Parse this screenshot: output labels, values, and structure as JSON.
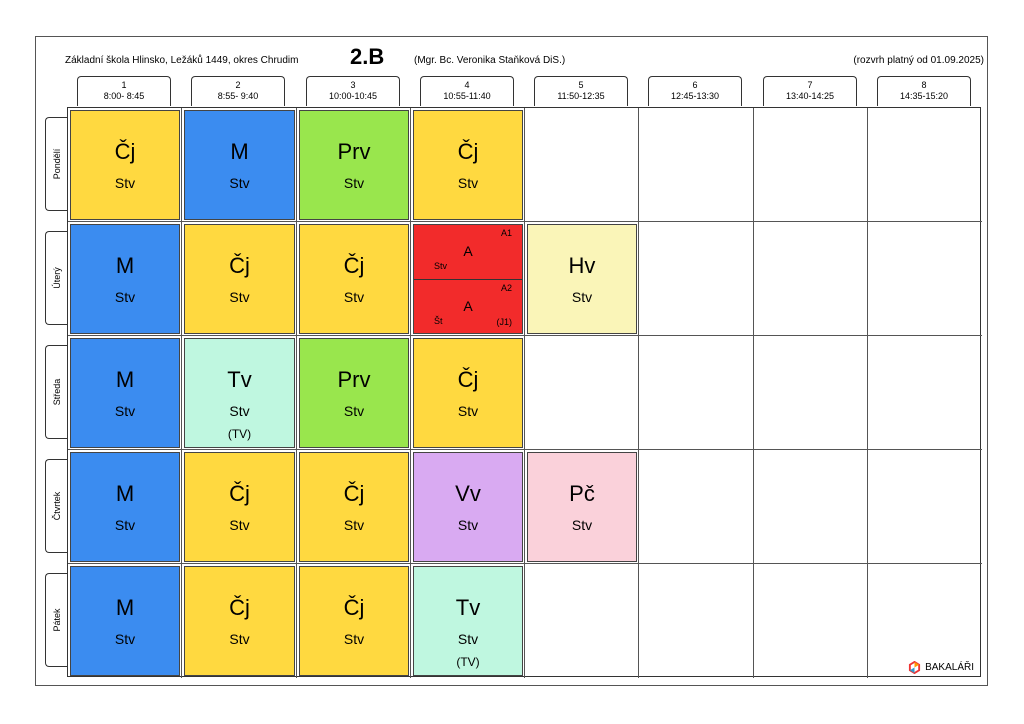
{
  "header": {
    "school": "Základní škola Hlinsko, Ležáků 1449, okres Chrudim",
    "class_name": "2.B",
    "teacher": "(Mgr. Bc. Veronika Staňková DiS.)",
    "valid_from": "(rozvrh platný od 01.09.2025)"
  },
  "periods": [
    {
      "num": "1",
      "time": "8:00- 8:45"
    },
    {
      "num": "2",
      "time": "8:55- 9:40"
    },
    {
      "num": "3",
      "time": "10:00-10:45"
    },
    {
      "num": "4",
      "time": "10:55-11:40"
    },
    {
      "num": "5",
      "time": "11:50-12:35"
    },
    {
      "num": "6",
      "time": "12:45-13:30"
    },
    {
      "num": "7",
      "time": "13:40-14:25"
    },
    {
      "num": "8",
      "time": "14:35-15:20"
    }
  ],
  "days": [
    "Pondělí",
    "Úterý",
    "Středa",
    "Čtvrtek",
    "Pátek"
  ],
  "colors": {
    "cj": "#FFD940",
    "m": "#3B8CF0",
    "prv": "#99E64D",
    "a": "#F22B2B",
    "hv": "#FAF5B8",
    "tv": "#BFF7E0",
    "vv": "#D9AAF2",
    "pc": "#FAD1DA"
  },
  "lessons": [
    {
      "day": 0,
      "period": 0,
      "subject": "Čj",
      "teacher": "Stv",
      "room": "",
      "color": "#FFD940"
    },
    {
      "day": 0,
      "period": 1,
      "subject": "M",
      "teacher": "Stv",
      "room": "",
      "color": "#3B8CF0"
    },
    {
      "day": 0,
      "period": 2,
      "subject": "Prv",
      "teacher": "Stv",
      "room": "",
      "color": "#99E64D"
    },
    {
      "day": 0,
      "period": 3,
      "subject": "Čj",
      "teacher": "Stv",
      "room": "",
      "color": "#FFD940"
    },
    {
      "day": 1,
      "period": 0,
      "subject": "M",
      "teacher": "Stv",
      "room": "",
      "color": "#3B8CF0"
    },
    {
      "day": 1,
      "period": 1,
      "subject": "Čj",
      "teacher": "Stv",
      "room": "",
      "color": "#FFD940"
    },
    {
      "day": 1,
      "period": 2,
      "subject": "Čj",
      "teacher": "Stv",
      "room": "",
      "color": "#FFD940"
    },
    {
      "day": 1,
      "period": 4,
      "subject": "Hv",
      "teacher": "Stv",
      "room": "",
      "color": "#FAF5B8"
    },
    {
      "day": 2,
      "period": 0,
      "subject": "M",
      "teacher": "Stv",
      "room": "",
      "color": "#3B8CF0"
    },
    {
      "day": 2,
      "period": 1,
      "subject": "Tv",
      "teacher": "Stv",
      "room": "(TV)",
      "color": "#BFF7E0"
    },
    {
      "day": 2,
      "period": 2,
      "subject": "Prv",
      "teacher": "Stv",
      "room": "",
      "color": "#99E64D"
    },
    {
      "day": 2,
      "period": 3,
      "subject": "Čj",
      "teacher": "Stv",
      "room": "",
      "color": "#FFD940"
    },
    {
      "day": 3,
      "period": 0,
      "subject": "M",
      "teacher": "Stv",
      "room": "",
      "color": "#3B8CF0"
    },
    {
      "day": 3,
      "period": 1,
      "subject": "Čj",
      "teacher": "Stv",
      "room": "",
      "color": "#FFD940"
    },
    {
      "day": 3,
      "period": 2,
      "subject": "Čj",
      "teacher": "Stv",
      "room": "",
      "color": "#FFD940"
    },
    {
      "day": 3,
      "period": 3,
      "subject": "Vv",
      "teacher": "Stv",
      "room": "",
      "color": "#D9AAF2"
    },
    {
      "day": 3,
      "period": 4,
      "subject": "Pč",
      "teacher": "Stv",
      "room": "",
      "color": "#FAD1DA"
    },
    {
      "day": 4,
      "period": 0,
      "subject": "M",
      "teacher": "Stv",
      "room": "",
      "color": "#3B8CF0"
    },
    {
      "day": 4,
      "period": 1,
      "subject": "Čj",
      "teacher": "Stv",
      "room": "",
      "color": "#FFD940"
    },
    {
      "day": 4,
      "period": 2,
      "subject": "Čj",
      "teacher": "Stv",
      "room": "",
      "color": "#FFD940"
    },
    {
      "day": 4,
      "period": 3,
      "subject": "Tv",
      "teacher": "Stv",
      "room": "(TV)",
      "color": "#BFF7E0"
    }
  ],
  "split_lesson": {
    "day": 1,
    "period": 3,
    "color": "#F22B2B",
    "groups": [
      {
        "group": "A1",
        "subject": "A",
        "teacher": "Stv",
        "room": ""
      },
      {
        "group": "A2",
        "subject": "A",
        "teacher": "Št",
        "room": "(J1)"
      }
    ]
  },
  "footer": {
    "logo_text": "BAKALÁŘI",
    "logo_icon": "bakalari-logo-icon"
  }
}
